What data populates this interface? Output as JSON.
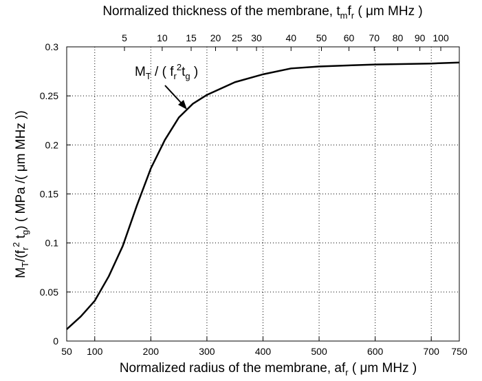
{
  "chart_data": {
    "type": "line",
    "x2label_parts": [
      "Normalized thickness of the membrane, t",
      "m",
      "f",
      "r",
      " ( μm MHz )"
    ],
    "xlabel_parts": [
      "Normalized radius of the membrane, af",
      "r",
      " ( μm MHz )"
    ],
    "ylabel_parts": [
      "M",
      "T",
      "/(f",
      "r",
      "2",
      " t",
      "g",
      ") ( MPa /( μm MHz ))"
    ],
    "annotation_parts": [
      "M",
      "T",
      " / ( f",
      "r",
      "2",
      "t",
      "g",
      " )"
    ],
    "x": [
      50,
      75,
      100,
      125,
      150,
      175,
      200,
      225,
      250,
      275,
      300,
      350,
      400,
      450,
      500,
      600,
      700,
      750
    ],
    "series": [
      {
        "name": "M_T",
        "color": "#000000",
        "values": [
          0.012,
          0.025,
          0.041,
          0.066,
          0.097,
          0.138,
          0.176,
          0.205,
          0.228,
          0.242,
          0.251,
          0.264,
          0.272,
          0.278,
          0.28,
          0.282,
          0.283,
          0.284
        ]
      }
    ],
    "xlim": [
      50,
      750
    ],
    "xticks": [
      50,
      100,
      200,
      300,
      400,
      500,
      600,
      700,
      750
    ],
    "ylim": [
      0,
      0.3
    ],
    "yticks": [
      0,
      0.05,
      0.1,
      0.15,
      0.2,
      0.25,
      0.3
    ],
    "x2scale": "sqrt",
    "x2lim": [
      0.67,
      109.3
    ],
    "x2ticks": [
      5,
      10,
      15,
      20,
      25,
      30,
      40,
      50,
      60,
      70,
      80,
      90,
      100
    ],
    "grid": true
  }
}
